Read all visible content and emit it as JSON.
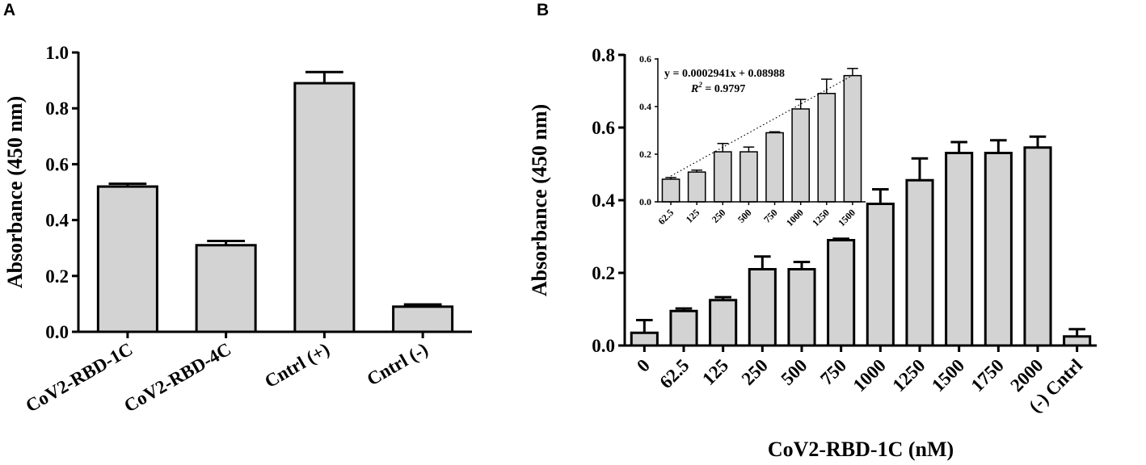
{
  "panels": {
    "a": {
      "label": "A"
    },
    "b": {
      "label": "B"
    }
  },
  "chart_data": [
    {
      "id": "A",
      "type": "bar",
      "title": "",
      "xlabel": "",
      "ylabel": "Absorbance  (450 nm)",
      "categories": [
        "CoV2-RBD-1C",
        "CoV2-RBD-4C",
        "Cntrl (+)",
        "Cntrl (-)"
      ],
      "values": [
        0.52,
        0.31,
        0.89,
        0.09
      ],
      "errors": [
        0.01,
        0.015,
        0.04,
        0.008
      ],
      "ylim": [
        0,
        1.0
      ],
      "yticks": [
        "0.0",
        "0.2",
        "0.4",
        "0.6",
        "0.8",
        "1.0"
      ],
      "bar_color": "#d3d3d3",
      "edge_color": "#000000"
    },
    {
      "id": "B",
      "type": "bar",
      "title": "",
      "xlabel": "CoV2-RBD-1C (nM)",
      "ylabel": "Absorbance  (450 nm)",
      "categories": [
        "0",
        "62.5",
        "125",
        "250",
        "500",
        "750",
        "1000",
        "1250",
        "1500",
        "1750",
        "2000",
        "(-) Cntrl"
      ],
      "values": [
        0.035,
        0.095,
        0.125,
        0.21,
        0.21,
        0.29,
        0.39,
        0.455,
        0.53,
        0.53,
        0.545,
        0.025
      ],
      "errors": [
        0.035,
        0.007,
        0.008,
        0.035,
        0.02,
        0.004,
        0.04,
        0.06,
        0.03,
        0.035,
        0.03,
        0.02
      ],
      "ylim": [
        0,
        0.8
      ],
      "yticks": [
        "0.0",
        "0.2",
        "0.4",
        "0.6",
        "0.8"
      ],
      "bar_color": "#d3d3d3",
      "edge_color": "#000000"
    },
    {
      "id": "B-inset",
      "type": "bar",
      "title": "",
      "xlabel": "",
      "ylabel": "",
      "categories": [
        "62.5",
        "125",
        "250",
        "500",
        "750",
        "1000",
        "1250",
        "1500"
      ],
      "values": [
        0.095,
        0.125,
        0.21,
        0.21,
        0.29,
        0.39,
        0.455,
        0.53
      ],
      "errors": [
        0.007,
        0.008,
        0.035,
        0.02,
        0.004,
        0.04,
        0.06,
        0.03
      ],
      "ylim": [
        0,
        0.6
      ],
      "yticks": [
        "0.0",
        "0.2",
        "0.4",
        "0.6"
      ],
      "trendline": {
        "slope": 0.0002941,
        "intercept": 0.08988,
        "equation": "y = 0.0002941x + 0.08988",
        "r2_label": "R",
        "r2_value": " = 0.9797"
      },
      "bar_color": "#d3d3d3",
      "edge_color": "#000000"
    }
  ]
}
